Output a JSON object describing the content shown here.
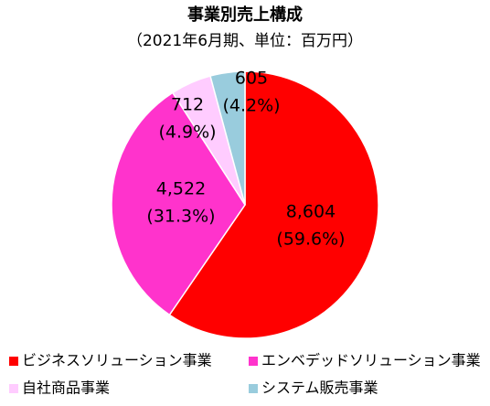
{
  "chart_data": {
    "type": "pie",
    "title": "事業別売上構成",
    "subtitle": "（2021年6月期、単位：百万円）",
    "categories": [
      "ビジネスソリューション事業",
      "エンベデッドソリューション事業",
      "自社商品事業",
      "システム販売事業"
    ],
    "values": [
      8604,
      4522,
      712,
      605
    ],
    "value_labels": [
      "8,604",
      "4,522",
      "712",
      "605"
    ],
    "percent_labels": [
      "(59.6%)",
      "(31.3%)",
      "(4.9%)",
      "(4.2%)"
    ],
    "colors": [
      "#ff0000",
      "#ff33cc",
      "#ffccff",
      "#99ccdd"
    ]
  }
}
